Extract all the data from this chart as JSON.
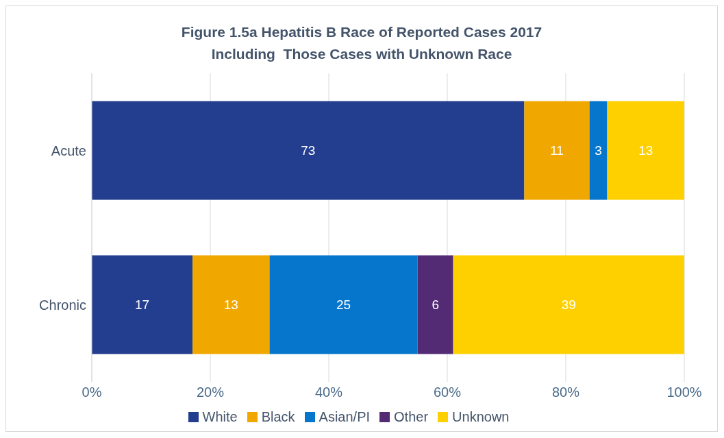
{
  "chart_data": {
    "type": "bar",
    "orientation": "horizontal",
    "stacked": true,
    "title": "Figure 1.5a Hepatitis B Race of Reported Cases 2017",
    "subtitle": "Including  Those Cases with Unknown Race",
    "categories": [
      "Acute",
      "Chronic"
    ],
    "series": [
      {
        "name": "White",
        "color": "#233d8f",
        "values": [
          73,
          17
        ]
      },
      {
        "name": "Black",
        "color": "#f0a800",
        "values": [
          11,
          13
        ]
      },
      {
        "name": "Asian/PI",
        "color": "#0676cc",
        "values": [
          3,
          25
        ]
      },
      {
        "name": "Other",
        "color": "#522b74",
        "values": [
          null,
          6
        ]
      },
      {
        "name": "Unknown",
        "color": "#ffd000",
        "values": [
          13,
          39
        ]
      }
    ],
    "xlim": [
      0,
      100
    ],
    "xticks": [
      {
        "value": 0,
        "label": "0%"
      },
      {
        "value": 20,
        "label": "20%"
      },
      {
        "value": 40,
        "label": "40%"
      },
      {
        "value": 60,
        "label": "60%"
      },
      {
        "value": 80,
        "label": "80%"
      },
      {
        "value": 100,
        "label": "100%"
      }
    ],
    "grid": "x",
    "legend": "bottom",
    "data_labels": true
  }
}
